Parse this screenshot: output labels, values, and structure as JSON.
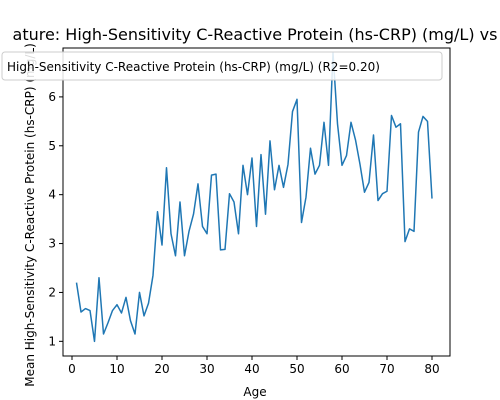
{
  "chart_data": {
    "type": "line",
    "title": "ature: High-Sensitivity C-Reactive Protein (hs-CRP) (mg/L) vs",
    "xlabel": "Age",
    "ylabel": "Mean High-Sensitivity C-Reactive Protein (hs-CRP) (mg/L)",
    "xlim": [
      -2,
      84
    ],
    "ylim": [
      0.7,
      7.0
    ],
    "xticks": [
      0,
      10,
      20,
      30,
      40,
      50,
      60,
      70,
      80
    ],
    "yticks": [
      1,
      2,
      3,
      4,
      5,
      6
    ],
    "grid": false,
    "legend_position": "top",
    "colors": {
      "line": "#1f77b4",
      "axes": "#000000",
      "legend_border": "#cccccc"
    },
    "series": [
      {
        "name": "High-Sensitivity C-Reactive Protein (hs-CRP) (mg/L) (R2=0.20)",
        "x": [
          1,
          2,
          3,
          4,
          5,
          6,
          7,
          8,
          9,
          10,
          11,
          12,
          13,
          14,
          15,
          16,
          17,
          18,
          19,
          20,
          21,
          22,
          23,
          24,
          25,
          26,
          27,
          28,
          29,
          30,
          31,
          32,
          33,
          34,
          35,
          36,
          37,
          38,
          39,
          40,
          41,
          42,
          43,
          44,
          45,
          46,
          47,
          48,
          49,
          50,
          51,
          52,
          53,
          54,
          55,
          56,
          57,
          58,
          59,
          60,
          61,
          62,
          63,
          64,
          65,
          66,
          67,
          68,
          69,
          70,
          71,
          72,
          73,
          74,
          75,
          76,
          77,
          78,
          79,
          80
        ],
        "y": [
          2.2,
          1.6,
          1.67,
          1.63,
          1.0,
          2.3,
          1.15,
          1.38,
          1.63,
          1.75,
          1.58,
          1.9,
          1.42,
          1.15,
          2.0,
          1.52,
          1.78,
          2.35,
          3.65,
          2.97,
          4.55,
          3.2,
          2.75,
          3.85,
          2.75,
          3.25,
          3.6,
          4.22,
          3.35,
          3.2,
          4.4,
          4.42,
          2.87,
          2.88,
          4.02,
          3.85,
          3.2,
          4.6,
          4.0,
          4.75,
          3.35,
          4.82,
          3.6,
          5.1,
          4.1,
          4.6,
          4.15,
          4.62,
          5.7,
          5.95,
          3.43,
          3.95,
          4.95,
          4.42,
          4.6,
          5.48,
          4.6,
          6.9,
          5.45,
          4.6,
          4.8,
          5.48,
          5.12,
          4.62,
          4.05,
          4.25,
          5.22,
          3.88,
          4.02,
          4.07,
          5.62,
          5.38,
          5.45,
          3.04,
          3.3,
          3.25,
          5.28,
          5.6,
          5.5,
          3.92
        ]
      }
    ]
  }
}
